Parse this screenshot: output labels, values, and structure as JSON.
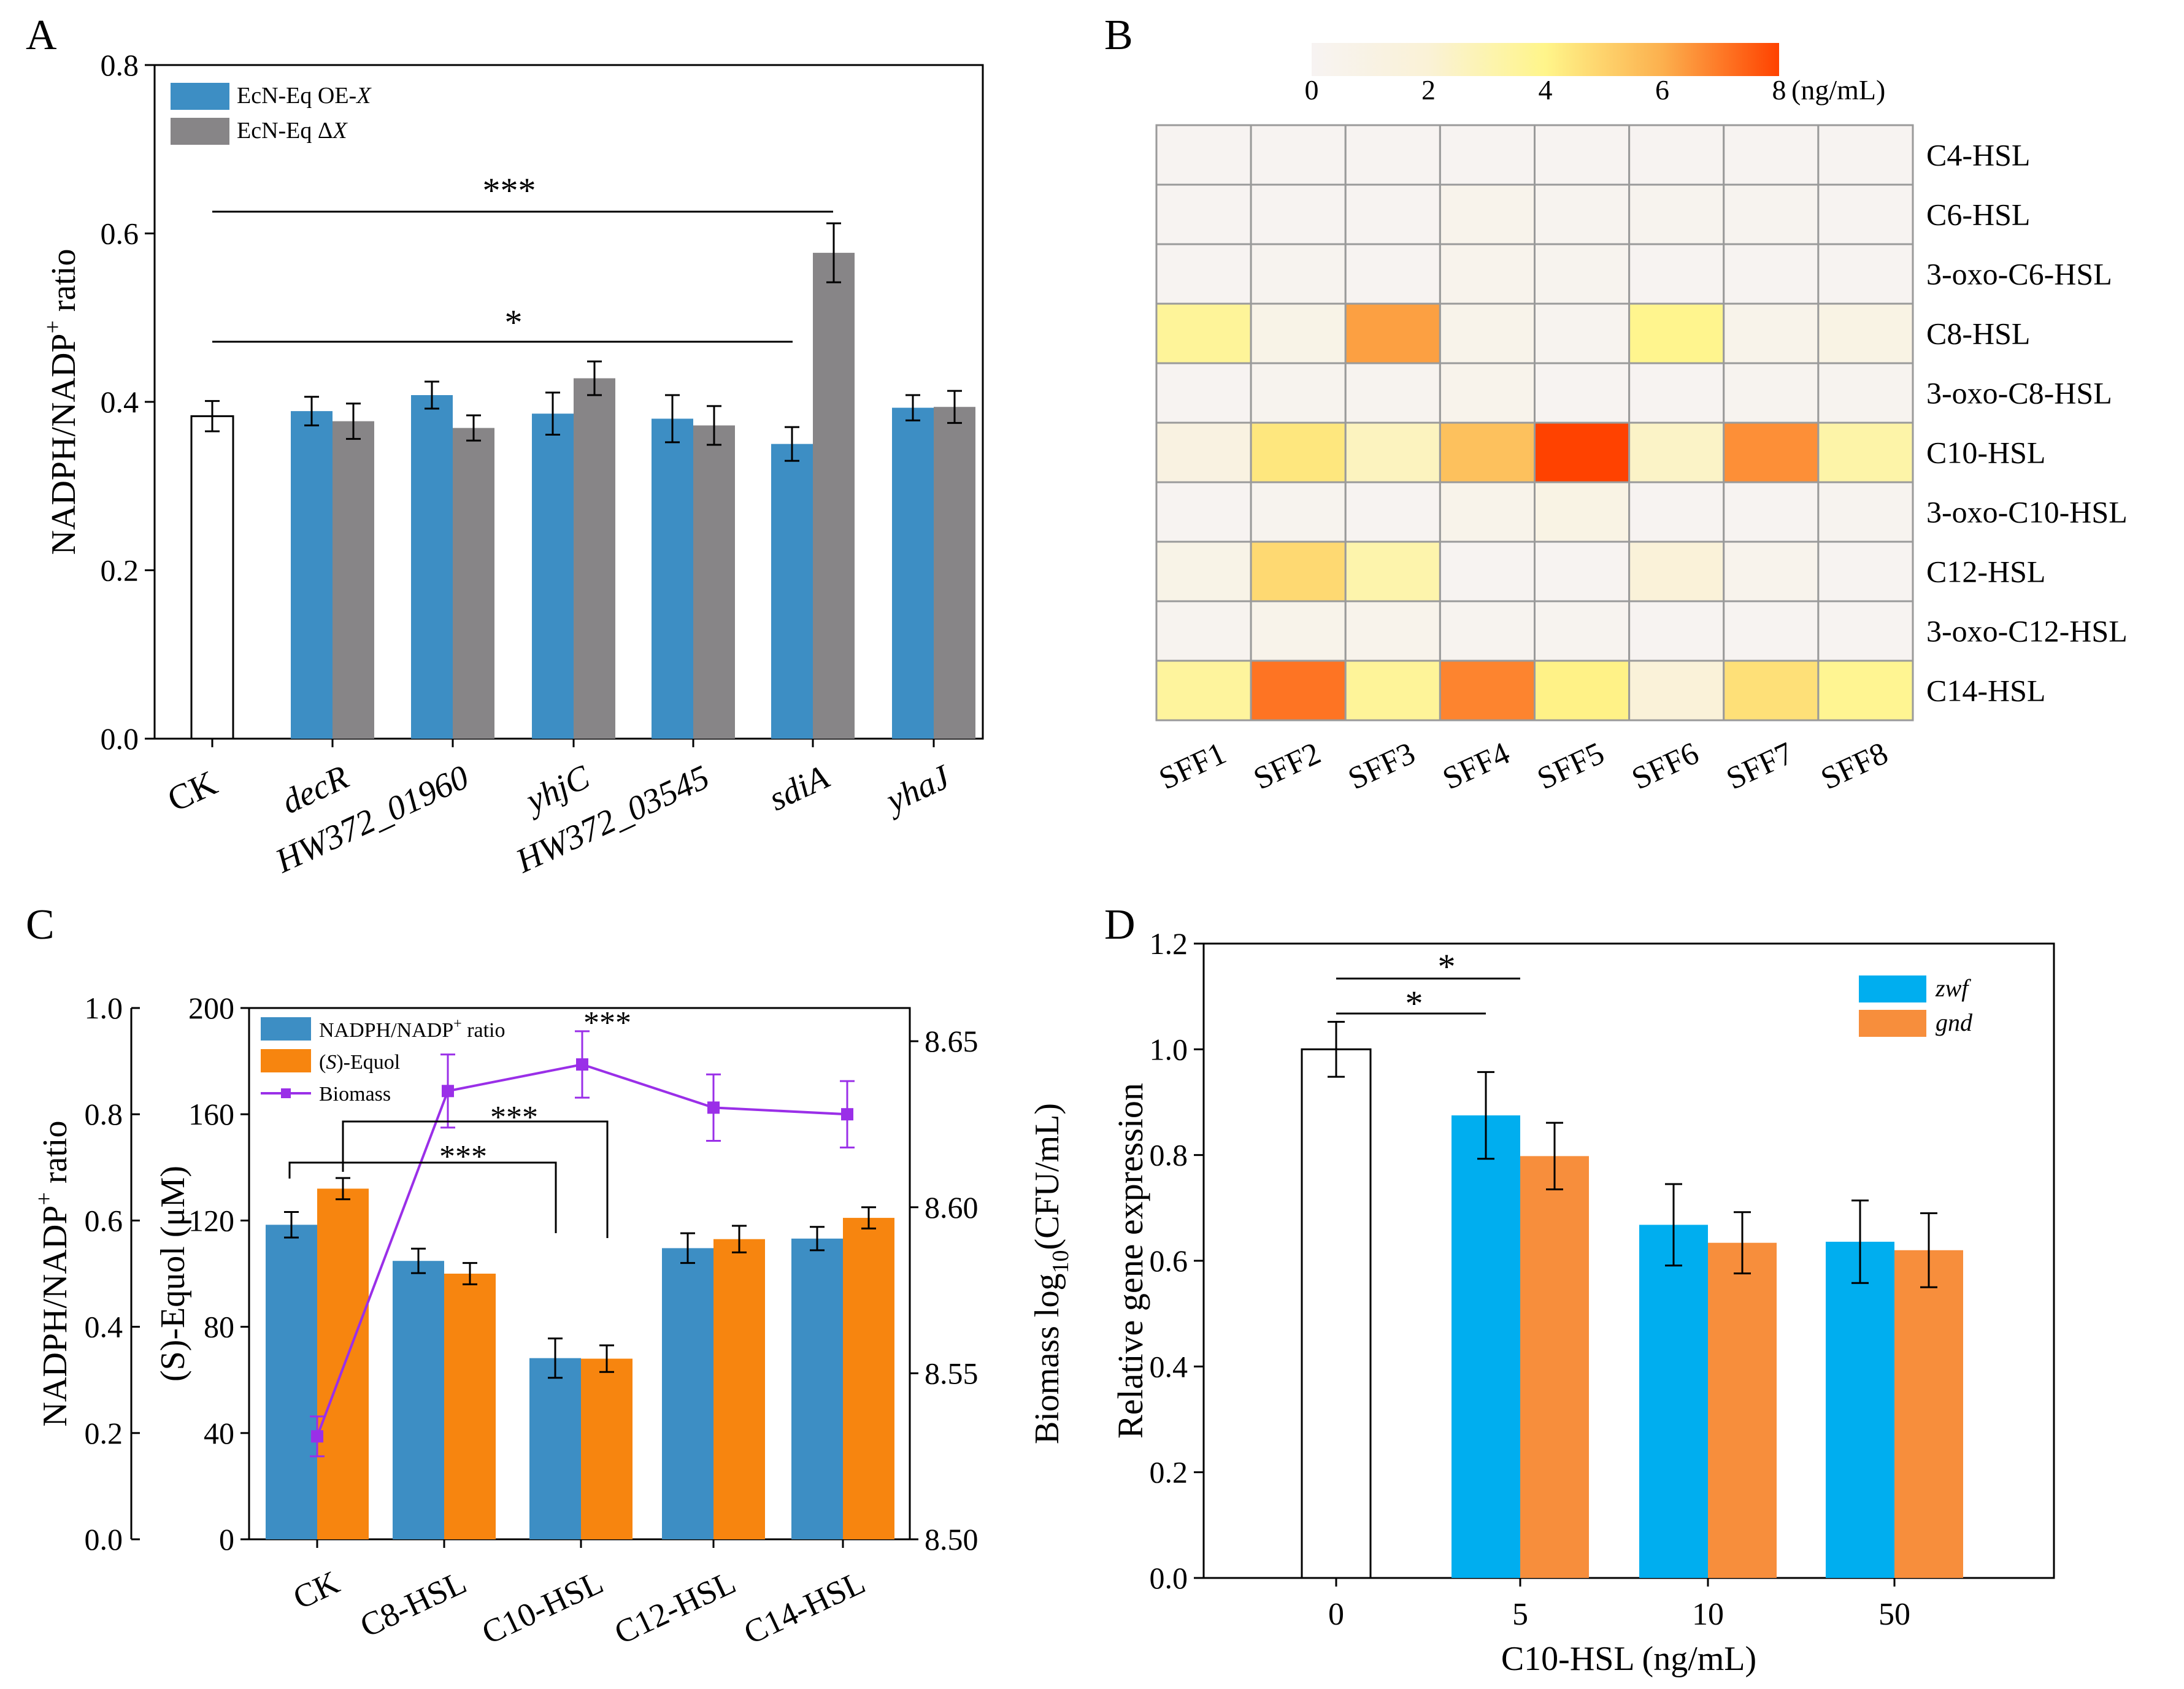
{
  "chart_data": [
    {
      "panel": "A",
      "type": "bar",
      "ylabel_main": "NADPH/NADP",
      "ylabel_sup": "+",
      "ylabel_tail": " ratio",
      "ylim": [
        0,
        0.8
      ],
      "yticks": [
        "0.0",
        "0.2",
        "0.4",
        "0.6",
        "0.8"
      ],
      "control": {
        "label": "CK",
        "value": 0.383,
        "err": 0.018,
        "color": "#ffffff"
      },
      "categories": [
        "decR",
        "HW372_01960",
        "yhjC",
        "HW372_03545",
        "sdiA",
        "yhaJ"
      ],
      "series": [
        {
          "name": "EcN-Eq OE-",
          "name_italic": "X",
          "color": "#3d8ec4",
          "values": [
            0.389,
            0.408,
            0.386,
            0.38,
            0.35,
            0.393
          ],
          "errors": [
            0.017,
            0.016,
            0.025,
            0.028,
            0.02,
            0.015
          ]
        },
        {
          "name": "EcN-Eq Δ",
          "name_italic": "X",
          "color": "#878587",
          "values": [
            0.377,
            0.369,
            0.428,
            0.372,
            0.577,
            0.394
          ],
          "errors": [
            0.021,
            0.015,
            0.02,
            0.023,
            0.035,
            0.019
          ]
        }
      ],
      "annotations": [
        "***",
        "*"
      ]
    },
    {
      "panel": "B",
      "type": "heatmap",
      "colorbar_ticks": [
        "0",
        "2",
        "4",
        "6",
        "8"
      ],
      "colorbar_unit": "(ng/mL)",
      "colorbar_range": [
        0,
        8
      ],
      "rows": [
        "C4-HSL",
        "C6-HSL",
        "3-oxo-C6-HSL",
        "C8-HSL",
        "3-oxo-C8-HSL",
        "C10-HSL",
        "3-oxo-C10-HSL",
        "C12-HSL",
        "3-oxo-C12-HSL",
        "C14-HSL"
      ],
      "columns": [
        "SFF1",
        "SFF2",
        "SFF3",
        "SFF4",
        "SFF5",
        "SFF6",
        "SFF7",
        "SFF8"
      ],
      "values": [
        [
          0.05,
          0.05,
          0.05,
          0.1,
          0.05,
          0.05,
          0.05,
          0.05
        ],
        [
          0.1,
          0.1,
          0.1,
          0.5,
          0.2,
          0.3,
          0.2,
          0.1
        ],
        [
          0.1,
          0.2,
          0.1,
          0.4,
          0.3,
          0.1,
          0.1,
          0.1
        ],
        [
          3.6,
          0.8,
          6.3,
          0.6,
          0.2,
          3.9,
          0.6,
          1.0
        ],
        [
          0.1,
          0.3,
          0.2,
          0.5,
          0.1,
          0.1,
          0.2,
          0.2
        ],
        [
          1.2,
          4.4,
          2.6,
          5.5,
          8.0,
          2.4,
          6.6,
          3.2
        ],
        [
          0.1,
          0.3,
          0.1,
          0.6,
          1.0,
          0.1,
          0.1,
          0.2
        ],
        [
          0.8,
          4.8,
          3.1,
          0.1,
          0.1,
          1.8,
          0.4,
          0.1
        ],
        [
          0.2,
          0.6,
          0.5,
          0.2,
          0.2,
          0.1,
          0.1,
          0.1
        ],
        [
          3.5,
          7.1,
          3.6,
          6.8,
          4.1,
          1.8,
          4.6,
          3.8
        ]
      ]
    },
    {
      "panel": "C",
      "type": "bar+line",
      "ylabel_left_main": "NADPH/NADP",
      "ylabel_left_sup": "+",
      "ylabel_left_tail": " ratio",
      "ylabel_mid": "(S)-Equol (μM)",
      "ylabel_right_pre": "Biomass log",
      "ylabel_right_sub": "10",
      "ylabel_right_tail": "(CFU/mL)",
      "left_ylim": [
        0,
        1.0
      ],
      "left_ticks": [
        "0.0",
        "0.2",
        "0.4",
        "0.6",
        "0.8",
        "1.0"
      ],
      "mid_ylim": [
        0,
        200
      ],
      "mid_ticks": [
        "0",
        "40",
        "80",
        "120",
        "160",
        "200"
      ],
      "right_ylim": [
        8.5,
        8.66
      ],
      "right_ticks": [
        "8.50",
        "8.55",
        "8.60",
        "8.65"
      ],
      "categories": [
        "CK",
        "C8-HSL",
        "C10-HSL",
        "C12-HSL",
        "C14-HSL"
      ],
      "series": [
        {
          "name": "NADPH/NADP",
          "name_sup": "+",
          "name_tail": " ratio",
          "color": "#3d8ec4",
          "values": [
            0.592,
            0.524,
            0.341,
            0.548,
            0.566
          ],
          "errors": [
            0.024,
            0.023,
            0.037,
            0.028,
            0.022
          ]
        },
        {
          "name_pre": "(",
          "name_italic": "S",
          "name": ")-Equol",
          "color": "#f7850f",
          "values": [
            132,
            100,
            68,
            113,
            121
          ],
          "errors": [
            4,
            4,
            5,
            5,
            4
          ]
        },
        {
          "name": "Biomass",
          "color": "#9a2fe8",
          "values": [
            8.531,
            8.635,
            8.643,
            8.63,
            8.628
          ],
          "errors": [
            0.006,
            0.011,
            0.01,
            0.01,
            0.01
          ]
        }
      ],
      "annotations": [
        "***",
        "***",
        "***"
      ]
    },
    {
      "panel": "D",
      "type": "bar",
      "ylabel": "Relative gene expression",
      "xlabel": "C10-HSL (ng/mL)",
      "ylim": [
        0,
        1.2
      ],
      "yticks": [
        "0.0",
        "0.2",
        "0.4",
        "0.6",
        "0.8",
        "1.0",
        "1.2"
      ],
      "control": {
        "label": "0",
        "value": 1.0,
        "err": 0.052,
        "color": "#ffffff"
      },
      "categories": [
        "5",
        "10",
        "50"
      ],
      "series": [
        {
          "name": "zwf",
          "color": "#00aeef",
          "values": [
            0.875,
            0.668,
            0.636
          ],
          "errors": [
            0.082,
            0.077,
            0.078
          ]
        },
        {
          "name": "gnd",
          "color": "#f78e3c",
          "values": [
            0.798,
            0.634,
            0.62
          ],
          "errors": [
            0.063,
            0.058,
            0.07
          ]
        }
      ],
      "annotations": [
        "*",
        "*"
      ]
    }
  ]
}
